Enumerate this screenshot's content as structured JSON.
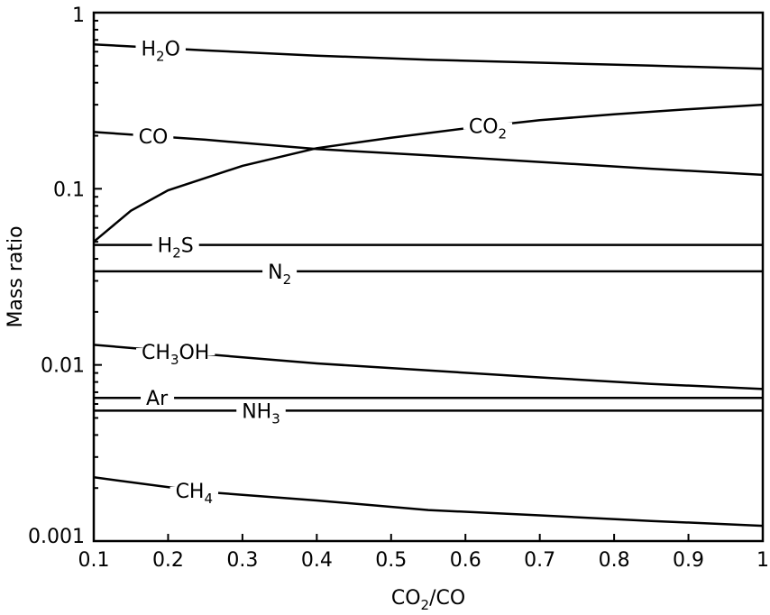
{
  "chart_data": {
    "type": "line",
    "title": "",
    "xlabel": {
      "main": "CO",
      "sub": "2",
      "rest": "/CO"
    },
    "ylabel": "Mass ratio",
    "xlim": [
      0.1,
      1.0
    ],
    "ylim": [
      0.001,
      1
    ],
    "y_scale": "log",
    "grid": false,
    "legend": "none (inline labels)",
    "x_ticks": [
      {
        "value": 0.1,
        "label": "0.1"
      },
      {
        "value": 0.2,
        "label": "0.2"
      },
      {
        "value": 0.3,
        "label": "0.3"
      },
      {
        "value": 0.4,
        "label": "0.4"
      },
      {
        "value": 0.5,
        "label": "0.5"
      },
      {
        "value": 0.6,
        "label": "0.6"
      },
      {
        "value": 0.7,
        "label": "0.7"
      },
      {
        "value": 0.8,
        "label": "0.8"
      },
      {
        "value": 0.9,
        "label": "0.9"
      },
      {
        "value": 1.0,
        "label": "1"
      }
    ],
    "y_ticks": [
      {
        "value": 1,
        "label": "1"
      },
      {
        "value": 0.1,
        "label": "0.1"
      },
      {
        "value": 0.01,
        "label": "0.01"
      },
      {
        "value": 0.001,
        "label": "0.001"
      }
    ],
    "series": [
      {
        "id": "h2o",
        "label_main": "H",
        "label_sub": "2",
        "label_rest": "O",
        "label_at_x": 0.19,
        "x": [
          0.1,
          0.25,
          0.4,
          0.55,
          0.7,
          0.85,
          1.0
        ],
        "y": [
          0.66,
          0.61,
          0.57,
          0.54,
          0.52,
          0.5,
          0.48
        ]
      },
      {
        "id": "co2",
        "label_main": "CO",
        "label_sub": "2",
        "label_rest": "",
        "label_at_x": 0.63,
        "x": [
          0.1,
          0.15,
          0.2,
          0.3,
          0.4,
          0.5,
          0.6,
          0.7,
          0.8,
          0.9,
          1.0
        ],
        "y": [
          0.05,
          0.075,
          0.098,
          0.135,
          0.17,
          0.195,
          0.22,
          0.245,
          0.265,
          0.283,
          0.3
        ]
      },
      {
        "id": "co",
        "label_main": "CO",
        "label_sub": "",
        "label_rest": "",
        "label_at_x": 0.18,
        "x": [
          0.1,
          0.25,
          0.4,
          0.55,
          0.7,
          0.85,
          1.0
        ],
        "y": [
          0.21,
          0.19,
          0.168,
          0.155,
          0.142,
          0.13,
          0.12
        ]
      },
      {
        "id": "h2s",
        "label_main": "H",
        "label_sub": "2",
        "label_rest": "S",
        "label_at_x": 0.21,
        "x": [
          0.1,
          1.0
        ],
        "y": [
          0.048,
          0.048
        ]
      },
      {
        "id": "n2",
        "label_main": "N",
        "label_sub": "2",
        "label_rest": "",
        "label_at_x": 0.35,
        "x": [
          0.1,
          1.0
        ],
        "y": [
          0.034,
          0.034
        ]
      },
      {
        "id": "ch3oh",
        "label_main": "CH",
        "label_sub": "3",
        "label_rest": "OH",
        "label_at_x": 0.21,
        "x": [
          0.1,
          0.25,
          0.4,
          0.55,
          0.7,
          0.85,
          1.0
        ],
        "y": [
          0.013,
          0.0115,
          0.0102,
          0.0093,
          0.0085,
          0.0078,
          0.0073
        ]
      },
      {
        "id": "ar",
        "label_main": "Ar",
        "label_sub": "",
        "label_rest": "",
        "label_at_x": 0.185,
        "x": [
          0.1,
          1.0
        ],
        "y": [
          0.0065,
          0.0065
        ]
      },
      {
        "id": "nh3",
        "label_main": "NH",
        "label_sub": "3",
        "label_rest": "",
        "label_at_x": 0.325,
        "x": [
          0.1,
          1.0
        ],
        "y": [
          0.0055,
          0.0055
        ]
      },
      {
        "id": "ch4",
        "label_main": "CH",
        "label_sub": "4",
        "label_rest": "",
        "label_at_x": 0.235,
        "x": [
          0.1,
          0.25,
          0.4,
          0.55,
          0.7,
          0.85,
          1.0
        ],
        "y": [
          0.0023,
          0.0019,
          0.0017,
          0.0015,
          0.0014,
          0.0013,
          0.00122
        ]
      }
    ]
  }
}
